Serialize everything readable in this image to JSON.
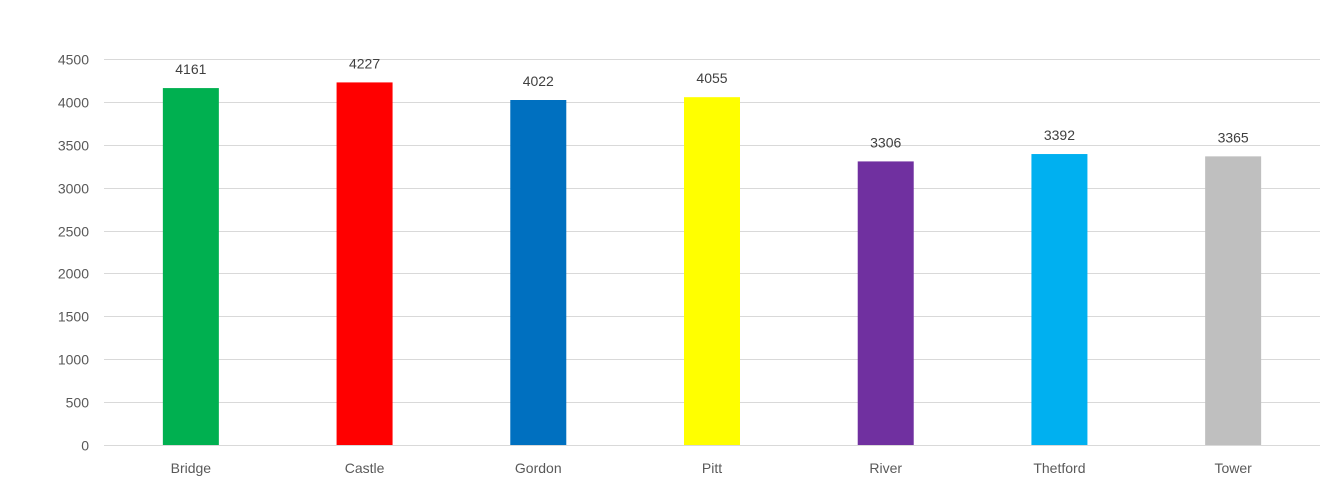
{
  "chart_data": {
    "type": "bar",
    "title": "",
    "xlabel": "",
    "ylabel": "",
    "categories": [
      "Bridge",
      "Castle",
      "Gordon",
      "Pitt",
      "River",
      "Thetford",
      "Tower"
    ],
    "values": [
      4161,
      4227,
      4022,
      4055,
      3306,
      3392,
      3365
    ],
    "colors": [
      "#00b050",
      "#ff0000",
      "#0070c0",
      "#ffff00",
      "#7030a0",
      "#00b0f0",
      "#bfbfbf"
    ],
    "ylim": [
      0,
      4500
    ],
    "yticks": [
      0,
      500,
      1000,
      1500,
      2000,
      2500,
      3000,
      3500,
      4000,
      4500
    ],
    "grid": true,
    "legend": "none",
    "data_labels": true
  }
}
